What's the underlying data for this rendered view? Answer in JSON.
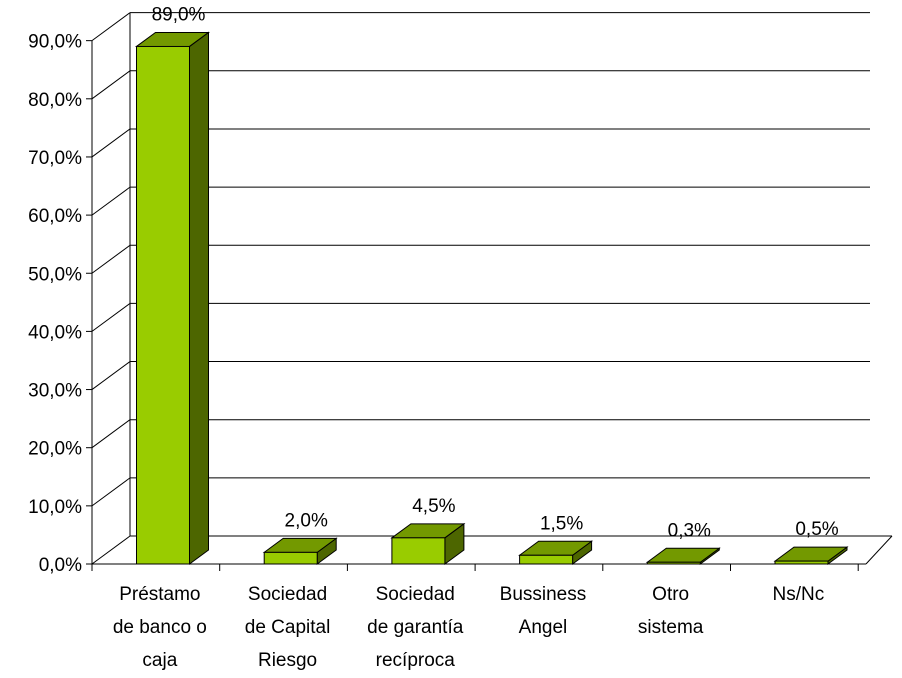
{
  "chart_data": {
    "type": "bar",
    "categories": [
      [
        "Préstamo",
        "de banco o",
        "caja"
      ],
      [
        "Sociedad",
        "de Capital",
        "Riesgo"
      ],
      [
        "Sociedad",
        "de garantía",
        "recíproca"
      ],
      [
        "Bussiness",
        "Angel"
      ],
      [
        "Otro",
        "sistema"
      ],
      [
        "Ns/Nc"
      ]
    ],
    "values": [
      89.0,
      2.0,
      4.5,
      1.5,
      0.3,
      0.5
    ],
    "data_labels": [
      "89,0%",
      "2,0%",
      "4,5%",
      "1,5%",
      "0,3%",
      "0,5%"
    ],
    "yticks": [
      "0,0%",
      "10,0%",
      "20,0%",
      "30,0%",
      "40,0%",
      "50,0%",
      "60,0%",
      "70,0%",
      "80,0%",
      "90,0%"
    ],
    "ylim": [
      0,
      90
    ],
    "grid": true,
    "legend": "none",
    "colors": {
      "bar_front": "#99CC00",
      "bar_top": "#739900",
      "bar_side": "#4D6600",
      "outline": "#000000",
      "grid": "#000000"
    }
  }
}
